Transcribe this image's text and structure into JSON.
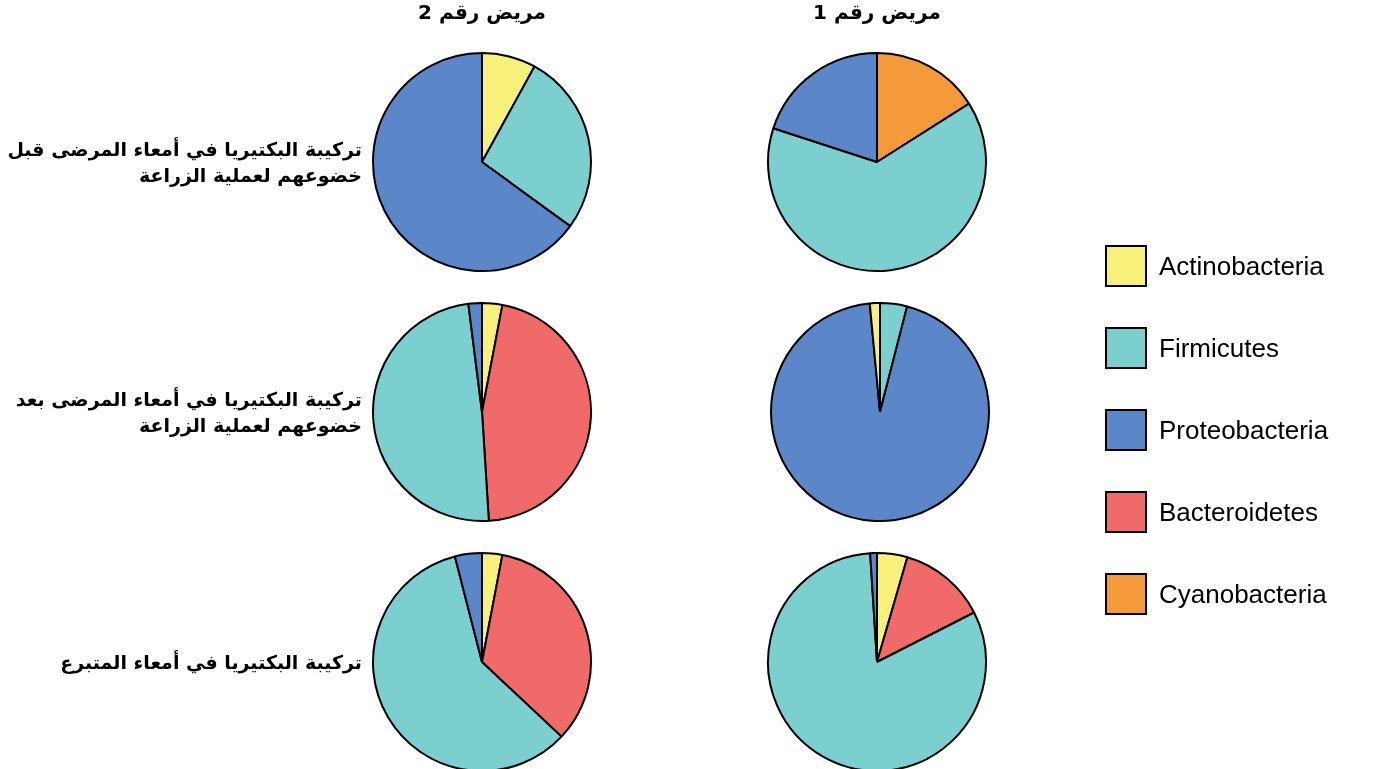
{
  "chart_data": [
    {
      "type": "pie",
      "title": "مريض رقم 2",
      "legend": "right",
      "ylabel": "تركيبة البكتيريا في أمعاء المرضى قبل خضوعهم لعملية الزراعة",
      "categories": [
        "Actinobacteria",
        "Firmicutes",
        "Proteobacteria",
        "Bacteroidetes",
        "Cyanobacteria"
      ],
      "values": [
        8,
        27,
        65,
        0,
        0
      ],
      "colors": [
        "#f7f07a",
        "#7ccfcf",
        "#5b87c9",
        "#f06a6a",
        "#f59a3a"
      ]
    },
    {
      "type": "pie",
      "title": "مريض رقم 1",
      "categories": [
        null,
        null,
        null
      ],
      "values": [
        16,
        64,
        20
      ],
      "colors": [
        "#f59a3a",
        "#7ccfcf",
        "#5b87c9"
      ]
    },
    {
      "type": "pie",
      "ylabel": "تركيبة البكتيريا في أمعاء المرضى بعد خضوعهم لعملية الزراعة",
      "categories": [
        null,
        null,
        null,
        null
      ],
      "values": [
        3,
        46,
        49,
        2
      ],
      "colors": [
        "#f7f07a",
        "#f06a6a",
        "#7ccfcf",
        "#5b87c9"
      ]
    },
    {
      "type": "pie",
      "categories": [
        null,
        null,
        null
      ],
      "values": [
        4,
        94.5,
        1.5
      ],
      "colors": [
        "#7ccfcf",
        "#5b87c9",
        "#f7f07a"
      ]
    },
    {
      "type": "pie",
      "ylabel": "تركيبة البكتيريا في أمعاء المتبرع",
      "categories": [
        null,
        null,
        null,
        null
      ],
      "values": [
        3,
        34,
        59,
        4
      ],
      "colors": [
        "#f7f07a",
        "#f06a6a",
        "#7ccfcf",
        "#5b87c9"
      ]
    },
    {
      "type": "pie",
      "categories": [
        null,
        null,
        null,
        null
      ],
      "values": [
        4.5,
        13,
        81.5,
        1
      ],
      "colors": [
        "#f7f07a",
        "#f06a6a",
        "#7ccfcf",
        "#5b87c9"
      ]
    }
  ]
}
